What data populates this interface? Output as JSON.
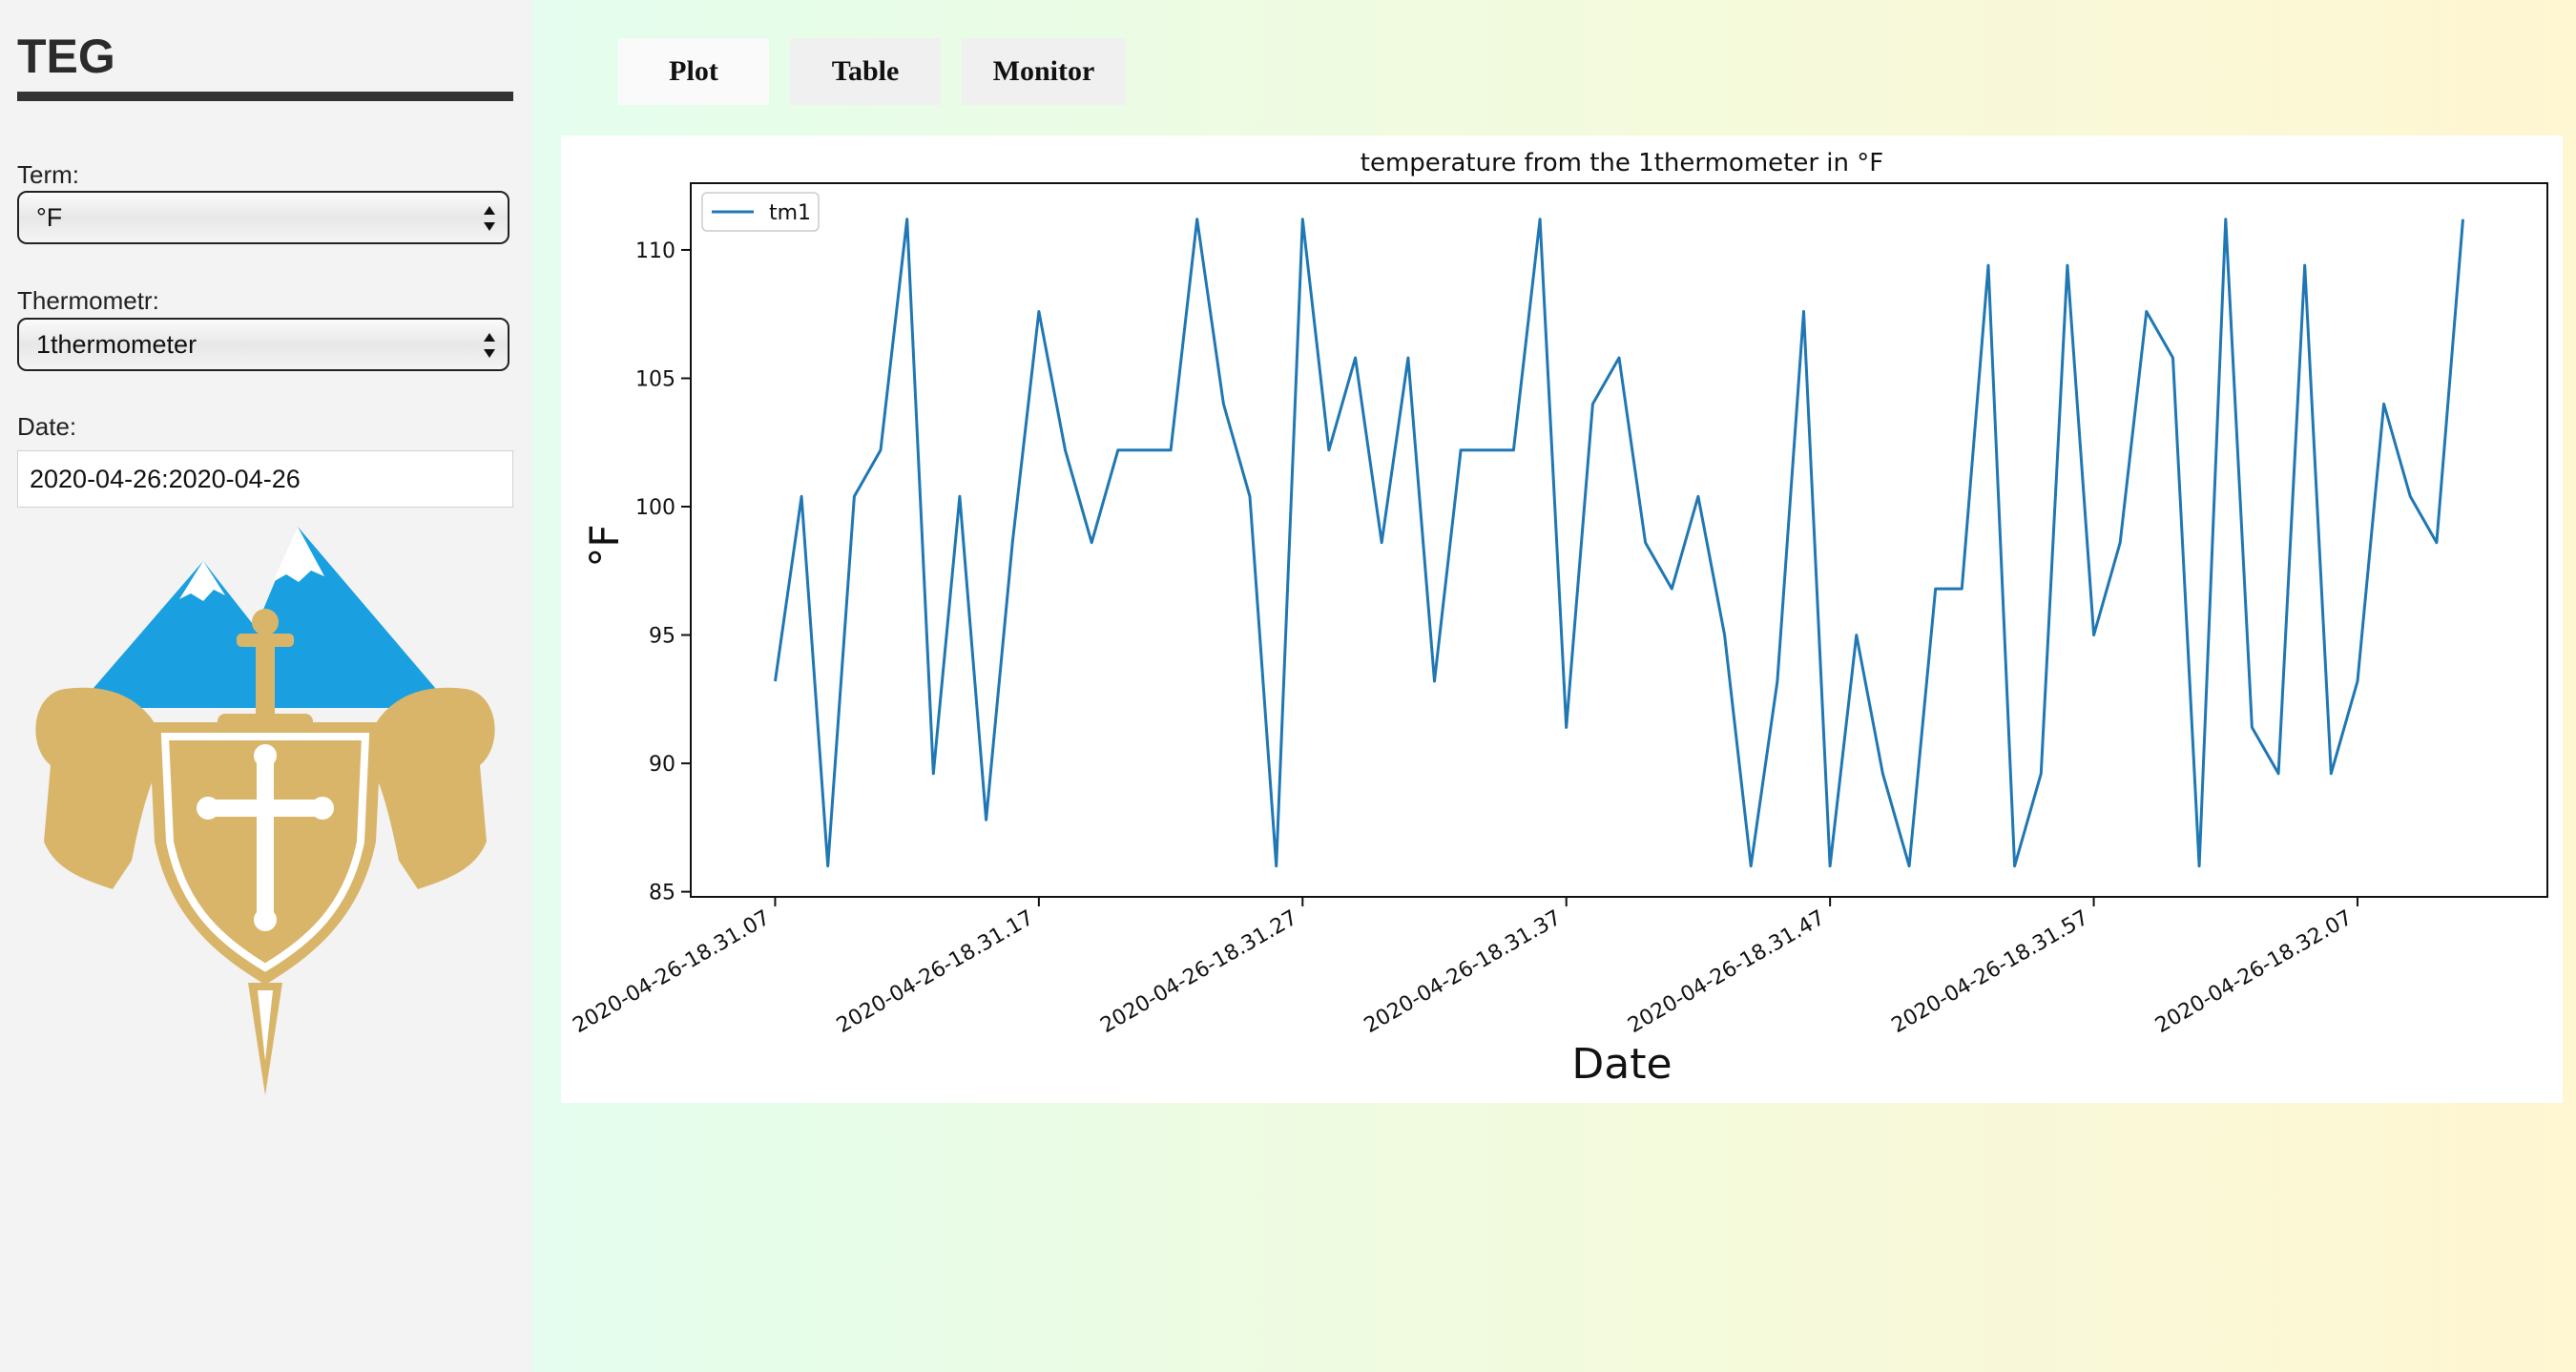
{
  "app": {
    "title": "TEG"
  },
  "sidebar": {
    "term": {
      "label": "Term:",
      "value": "°F"
    },
    "thermometer": {
      "label": "Thermometr:",
      "value": "1thermometer"
    },
    "date": {
      "label": "Date:",
      "value": "2020-04-26:2020-04-26"
    },
    "logo_icon": "coat-of-arms-mountains-lions-icon"
  },
  "tabs": [
    {
      "label": "Plot",
      "active": true
    },
    {
      "label": "Table",
      "active": false
    },
    {
      "label": "Monitor",
      "active": false
    }
  ],
  "colors": {
    "line": "#1f77b4",
    "sky_blue": "#1aa0e0",
    "gold": "#d9b56a"
  },
  "chart_data": {
    "type": "line",
    "title": "temperature from the 1thermometer in °F",
    "xlabel": "Date",
    "ylabel": "°F",
    "ylim": [
      84.8,
      112.6
    ],
    "yticks": [
      85,
      90,
      95,
      100,
      105,
      110
    ],
    "xticks": [
      "2020-04-26-18.31.07",
      "2020-04-26-18.31.17",
      "2020-04-26-18.31.27",
      "2020-04-26-18.31.37",
      "2020-04-26-18.31.47",
      "2020-04-26-18.31.57",
      "2020-04-26-18.32.07"
    ],
    "xtick_positions": [
      0,
      10,
      20,
      30,
      40,
      50,
      60
    ],
    "legend": {
      "position": "top-left"
    },
    "grid": false,
    "series": [
      {
        "name": "tm1",
        "values": [
          93.2,
          100.4,
          86.0,
          100.4,
          102.2,
          111.2,
          89.6,
          100.4,
          87.8,
          98.6,
          107.6,
          102.2,
          98.6,
          102.2,
          102.2,
          102.2,
          111.2,
          104.0,
          100.4,
          86.0,
          111.2,
          102.2,
          105.8,
          98.6,
          105.8,
          93.2,
          102.2,
          102.2,
          102.2,
          111.2,
          91.4,
          104.0,
          105.8,
          98.6,
          96.8,
          100.4,
          95.0,
          86.0,
          93.2,
          107.6,
          86.0,
          95.0,
          89.6,
          86.0,
          96.8,
          96.8,
          109.4,
          86.0,
          89.6,
          109.4,
          95.0,
          98.6,
          107.6,
          105.8,
          86.0,
          111.2,
          91.4,
          89.6,
          109.4,
          89.6,
          93.2,
          104.0,
          100.4,
          98.6,
          111.2
        ]
      }
    ]
  }
}
